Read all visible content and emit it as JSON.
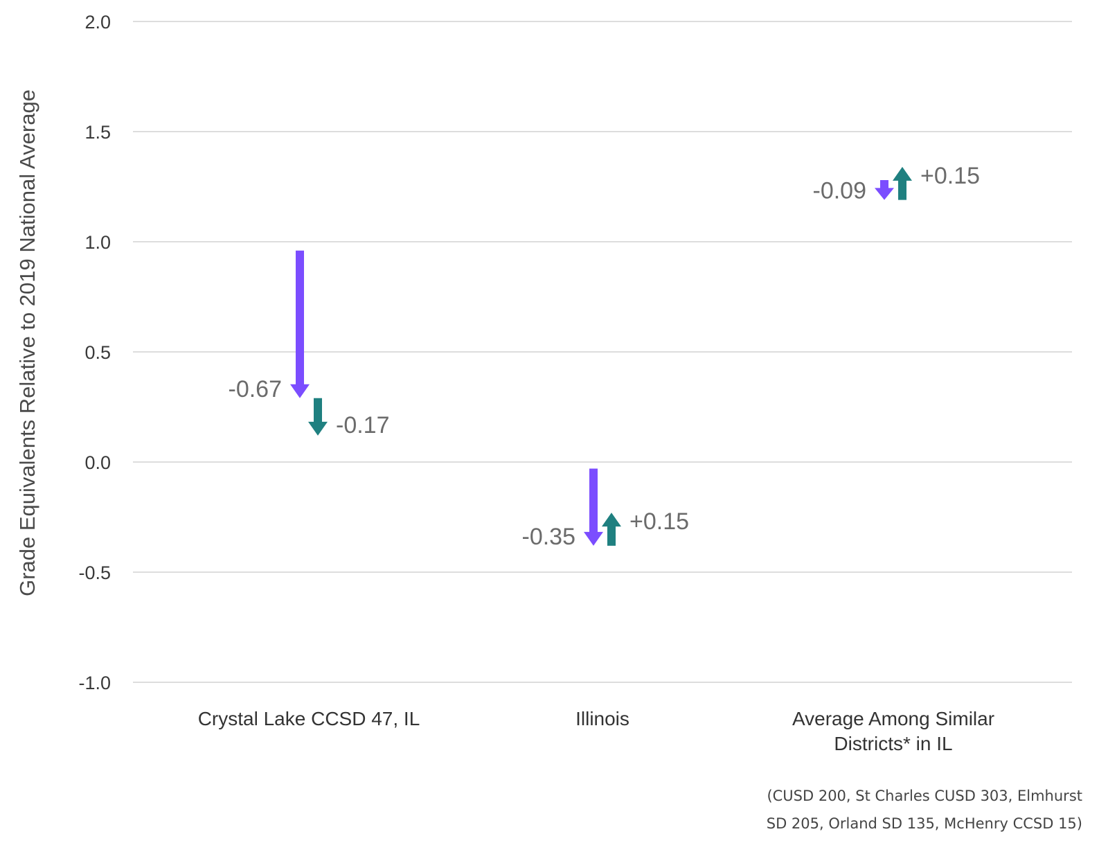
{
  "chart_data": {
    "type": "arrow",
    "ylabel": "Grade Equivalents Relative to 2019 National Average",
    "ylim": [
      -1.0,
      2.0
    ],
    "yticks": [
      2.0,
      1.5,
      1.0,
      0.5,
      0.0,
      -0.5,
      -1.0
    ],
    "ytick_labels": [
      "2.0",
      "1.5",
      "1.0",
      "0.5",
      "0.0",
      "-0.5",
      "-1.0"
    ],
    "grid": true,
    "categories": [
      [
        "Crystal Lake CCSD 47, IL"
      ],
      [
        "Illinois"
      ],
      [
        "Average Among Similar",
        "Districts* in IL"
      ]
    ],
    "groups": [
      {
        "first": {
          "from": 0.96,
          "to": 0.29,
          "label": "-0.67"
        },
        "second": {
          "from": 0.29,
          "to": 0.12,
          "label": "-0.17"
        }
      },
      {
        "first": {
          "from": -0.03,
          "to": -0.38,
          "label": "-0.35"
        },
        "second": {
          "from": -0.38,
          "to": -0.23,
          "label": "+0.15"
        }
      },
      {
        "first": {
          "from": 1.28,
          "to": 1.19,
          "label": "-0.09"
        },
        "second": {
          "from": 1.19,
          "to": 1.34,
          "label": "+0.15"
        }
      }
    ],
    "colors": {
      "first": "#7b4dff",
      "second": "#1f8080"
    },
    "footnote": [
      "(CUSD 200, St Charles CUSD 303, Elmhurst",
      "SD 205, Orland SD 135, McHenry CCSD 15)"
    ]
  }
}
